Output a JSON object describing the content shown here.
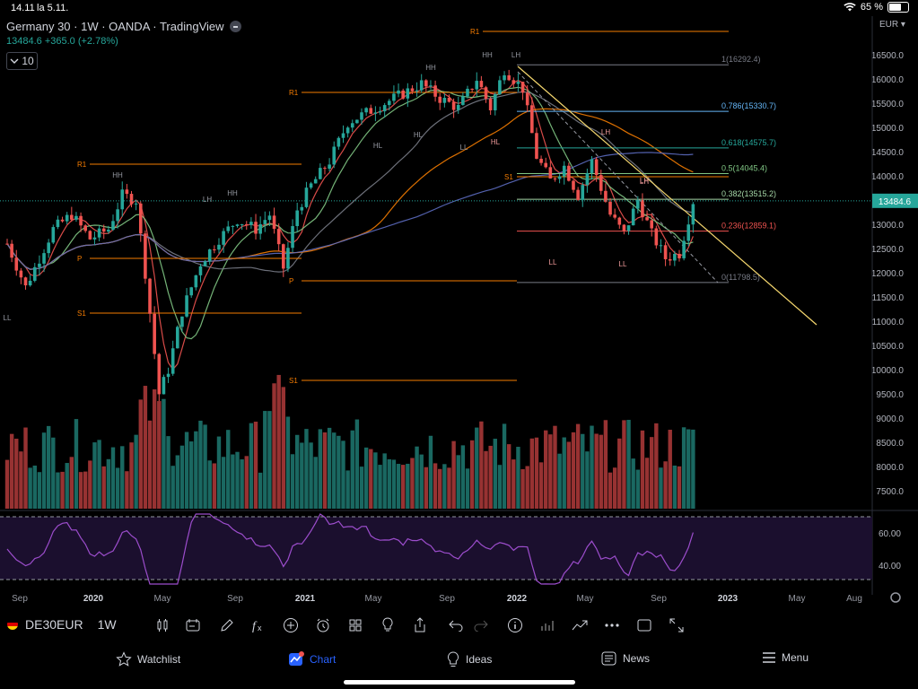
{
  "status": {
    "time": "14.11",
    "date": "la 5.11.",
    "battery": "65 %"
  },
  "legend": {
    "title": "Germany 30 · 1W · OANDA · TradingView",
    "quote": "13484.6 +365.0 (+2.78%)",
    "indicator_count": "10"
  },
  "currency": "EUR",
  "chart_data": {
    "type": "candlestick",
    "symbol": "DE30EUR",
    "interval": "1W",
    "last_price": 13484.6,
    "price_axis_labels": [
      "16500.0",
      "16000.0",
      "15500.0",
      "15000.0",
      "14500.0",
      "14000.0",
      "13500.0",
      "13000.0",
      "12500.0",
      "12000.0",
      "11500.0",
      "11000.0",
      "10500.0",
      "10000.0",
      "9500.0",
      "9000.0",
      "8500.0",
      "8000.0",
      "7500.0"
    ],
    "ylim": [
      7200,
      16800
    ],
    "rsi_axis_labels": [
      "60.00",
      "40.00"
    ],
    "time_axis_labels": [
      "Sep",
      "2020",
      "May",
      "Sep",
      "2021",
      "May",
      "Sep",
      "2022",
      "May",
      "Sep",
      "2023",
      "May",
      "Aug"
    ],
    "time_axis_bold": [
      "2020",
      "2021",
      "2022",
      "2023"
    ],
    "fib_levels": [
      {
        "label": "1(16292.4)",
        "value": 16292.4,
        "color": "#787b86"
      },
      {
        "label": "0.786(15330.7)",
        "value": 15330.7,
        "color": "#64b5f6"
      },
      {
        "label": "0.618(14575.7)",
        "value": 14575.7,
        "color": "#26a69a"
      },
      {
        "label": "0.5(14045.4)",
        "value": 14045.4,
        "color": "#81c784"
      },
      {
        "label": "0.382(13515.2)",
        "value": 13515.2,
        "color": "#a5d6a7"
      },
      {
        "label": "0.236(12859.1)",
        "value": 12859.1,
        "color": "#ef5350"
      },
      {
        "label": "0(11798.5)",
        "value": 11798.5,
        "color": "#787b86"
      }
    ],
    "pivot_labels": [
      "R1",
      "R1",
      "R1",
      "P",
      "P",
      "S1",
      "S1",
      "S1"
    ],
    "swing_labels": [
      "LL",
      "HH",
      "LH",
      "HH",
      "HL",
      "HH",
      "HH",
      "LH",
      "HL",
      "LL",
      "HL",
      "LH",
      "LH",
      "LH",
      "LL",
      "LL"
    ]
  },
  "bottombar": {
    "symbol": "DE30EUR",
    "interval": "1W"
  },
  "tabs": [
    {
      "label": "Watchlist",
      "icon": "star-icon"
    },
    {
      "label": "Chart",
      "icon": "chart-icon"
    },
    {
      "label": "Ideas",
      "icon": "bulb-icon"
    },
    {
      "label": "News",
      "icon": "news-icon"
    },
    {
      "label": "Menu",
      "icon": "menu-icon"
    }
  ],
  "colors": {
    "up": "#26a69a",
    "down": "#ef5350",
    "active": "#2962ff",
    "pivot": "#f57c00",
    "trend": "#f5d76e"
  }
}
